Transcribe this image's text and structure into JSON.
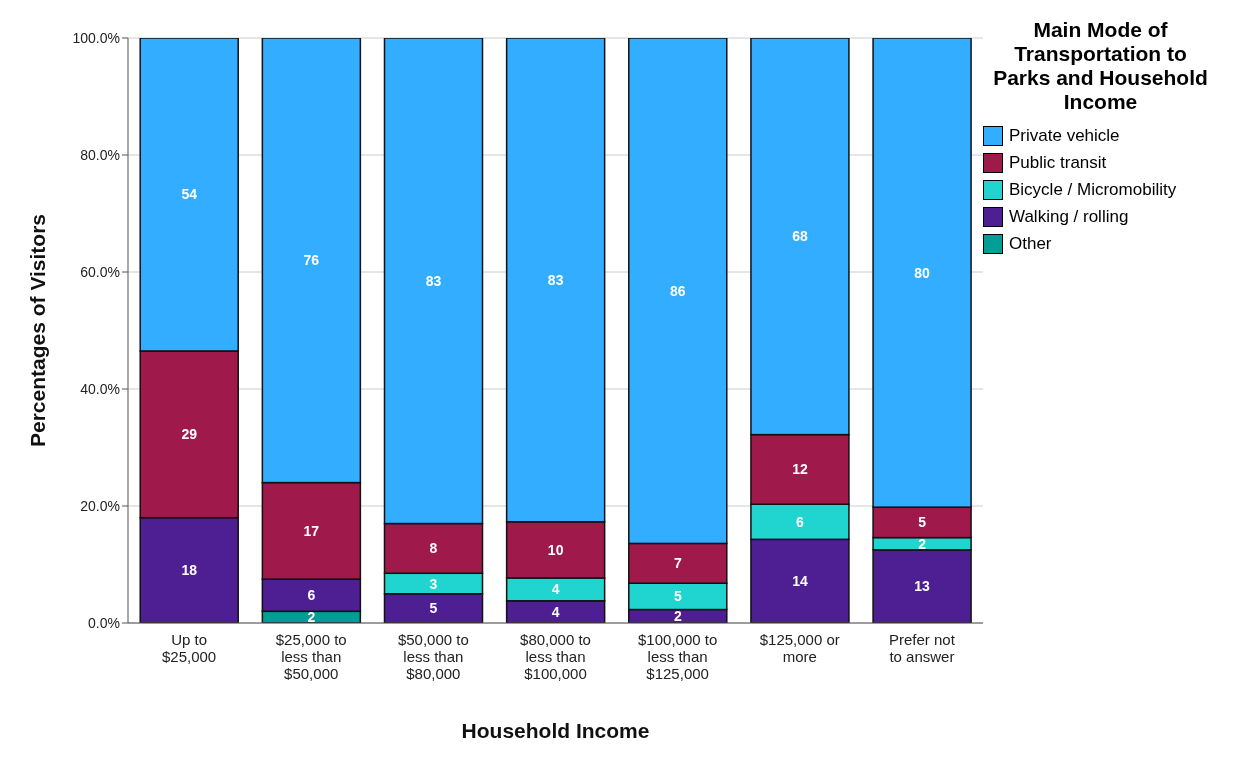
{
  "chart_data": {
    "type": "bar",
    "stacked": true,
    "xlabel": "Household Income",
    "ylabel": "Percentages of Visitors",
    "legend_title": "Main Mode of Transportation to Parks and Household Income",
    "categories": [
      "Up to $25,000",
      "$25,000 to less than $50,000",
      "$50,000 to less than $80,000",
      "$80,000 to less than $100,000",
      "$100,000 to less than $125,000",
      "$125,000 or more",
      "Prefer not to answer"
    ],
    "series": [
      {
        "name": "Other",
        "color": "#009e96",
        "values": [
          null,
          2,
          null,
          null,
          null,
          null,
          null
        ],
        "value_labels": [
          null,
          "2",
          null,
          null,
          null,
          null,
          null
        ]
      },
      {
        "name": "Walking / rolling",
        "color": "#4e1f93",
        "values": [
          18,
          5.5,
          5,
          3.8,
          2.3,
          14.3,
          12.5
        ],
        "value_labels": [
          "18",
          "6",
          "5",
          "4",
          "2",
          "14",
          "13"
        ]
      },
      {
        "name": "Bicycle / Micromobility",
        "color": "#20d4d0",
        "values": [
          null,
          null,
          3.5,
          3.9,
          4.5,
          6,
          2.1
        ],
        "value_labels": [
          null,
          null,
          "3",
          "4",
          "5",
          "6",
          "2"
        ]
      },
      {
        "name": "Public transit",
        "color": "#a0194b",
        "values": [
          28.5,
          16.5,
          8.5,
          9.6,
          6.8,
          11.9,
          5.2
        ],
        "value_labels": [
          "29",
          "17",
          "8",
          "10",
          "7",
          "12",
          "5"
        ]
      },
      {
        "name": "Private vehicle",
        "color": "#33adff",
        "values": [
          53.5,
          76,
          83,
          82.7,
          86.4,
          67.8,
          80.2
        ],
        "value_labels": [
          "54",
          "76",
          "83",
          "83",
          "86",
          "68",
          "80"
        ]
      }
    ],
    "ylim": [
      0,
      100
    ],
    "yticks": [
      {
        "value": 0,
        "label": "0.0%"
      },
      {
        "value": 20,
        "label": "20.0%"
      },
      {
        "value": 40,
        "label": "40.0%"
      },
      {
        "value": 60,
        "label": "60.0%"
      },
      {
        "value": 80,
        "label": "80.0%"
      },
      {
        "value": 100,
        "label": "100.0%"
      }
    ],
    "grid": "y",
    "legend": "top right"
  }
}
